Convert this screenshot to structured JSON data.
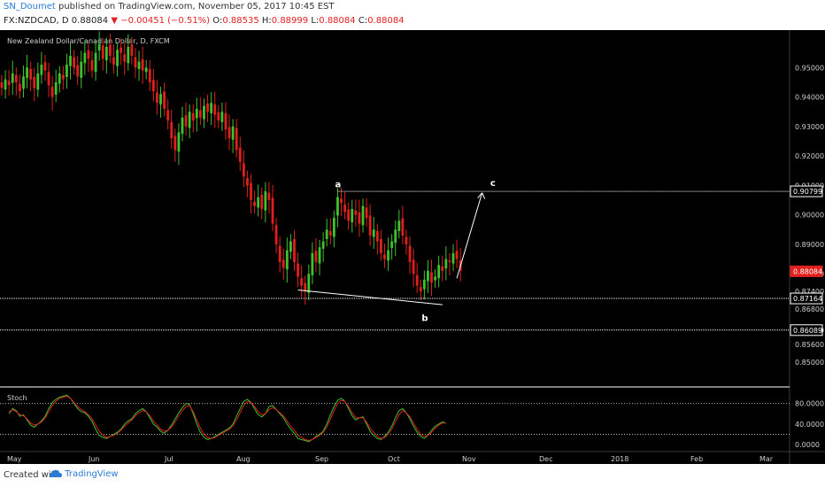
{
  "header": {
    "author": "SN_Doumet",
    "published_text": "published on TradingView.com, November 05, 2017 10:45 EST",
    "symbol": "FX:NZDCAD, D",
    "last": "0.88084",
    "change": "−0.00451 (−0.51%)",
    "o_label": "O:",
    "o_value": "0.88535",
    "h_label": "H:",
    "h_value": "0.88999",
    "l_label": "L:",
    "l_value": "0.88084",
    "c_label": "C:",
    "c_value": "0.88084"
  },
  "footer": {
    "created_with": "Created with",
    "brand": "TradingView"
  },
  "colors": {
    "bg": "#000000",
    "up": "#3ec22e",
    "down": "#e0201d",
    "stoch_k": "#3ec22e",
    "stoch_d": "#e0201d",
    "annotation": "#ffffff",
    "price_tag_last": "#e0201d"
  },
  "chart_data": [
    {
      "type": "candlestick",
      "title": "New Zealand Dollar/Canadian Dollar, D, FXCM",
      "ylim": [
        0.8425,
        0.9585
      ],
      "y_ticks": [
        "0.95000",
        "0.94000",
        "0.93000",
        "0.92000",
        "0.91000",
        "0.90000",
        "0.89000",
        "0.88000",
        "0.87400",
        "0.86800",
        "0.86089",
        "0.85600",
        "0.85000"
      ],
      "x_ticks": [
        "May",
        "Jun",
        "Jul",
        "Aug",
        "Sep",
        "Oct",
        "Nov",
        "Dec",
        "2018",
        "Feb",
        "Mar"
      ],
      "price_tags": [
        {
          "label": "0.90799",
          "value": 0.90799,
          "style": "white"
        },
        {
          "label": "0.88084",
          "value": 0.88084,
          "style": "red"
        },
        {
          "label": "0.87164",
          "value": 0.87164,
          "style": "white"
        },
        {
          "label": "0.86089",
          "value": 0.86089,
          "style": "white"
        }
      ],
      "horizontal_lines": [
        0.90799,
        0.87164,
        0.86089
      ],
      "close_series": [
        0.943,
        0.946,
        0.944,
        0.948,
        0.945,
        0.942,
        0.947,
        0.95,
        0.946,
        0.943,
        0.948,
        0.951,
        0.949,
        0.944,
        0.94,
        0.945,
        0.948,
        0.946,
        0.951,
        0.954,
        0.95,
        0.947,
        0.952,
        0.955,
        0.953,
        0.949,
        0.955,
        0.958,
        0.953,
        0.957,
        0.954,
        0.951,
        0.956,
        0.955,
        0.952,
        0.957,
        0.954,
        0.95,
        0.952,
        0.949,
        0.95,
        0.945,
        0.942,
        0.938,
        0.941,
        0.936,
        0.932,
        0.926,
        0.922,
        0.928,
        0.933,
        0.93,
        0.935,
        0.932,
        0.936,
        0.933,
        0.937,
        0.935,
        0.938,
        0.934,
        0.932,
        0.935,
        0.929,
        0.926,
        0.93,
        0.922,
        0.918,
        0.913,
        0.91,
        0.905,
        0.903,
        0.906,
        0.902,
        0.908,
        0.905,
        0.897,
        0.89,
        0.884,
        0.882,
        0.888,
        0.891,
        0.884,
        0.879,
        0.876,
        0.874,
        0.88,
        0.887,
        0.884,
        0.889,
        0.891,
        0.895,
        0.893,
        0.899,
        0.906,
        0.904,
        0.901,
        0.898,
        0.902,
        0.9,
        0.897,
        0.903,
        0.899,
        0.893,
        0.895,
        0.891,
        0.887,
        0.885,
        0.888,
        0.891,
        0.895,
        0.898,
        0.893,
        0.89,
        0.884,
        0.88,
        0.876,
        0.874,
        0.878,
        0.881,
        0.877,
        0.879,
        0.883,
        0.881,
        0.885,
        0.884,
        0.887,
        0.885,
        0.881
      ],
      "annotations": [
        {
          "label": "a",
          "date_index": 93,
          "price": 0.9075
        },
        {
          "label": "b",
          "date_index": 117,
          "price": 0.87
        },
        {
          "label": "c",
          "date_index": 136,
          "price": 0.908
        }
      ],
      "trendlines": [
        {
          "from": [
            82,
            0.8745
          ],
          "to": [
            122,
            0.8695
          ]
        },
        {
          "from": [
            126,
            0.8785
          ],
          "to": [
            133,
            0.9075
          ]
        }
      ],
      "grid": false
    },
    {
      "type": "line",
      "title": "Stoch",
      "ylim": [
        -10,
        100
      ],
      "y_ticks": [
        "80.0000",
        "40.0000",
        "0.0000"
      ],
      "levels": [
        80,
        20
      ],
      "series": [
        {
          "name": "",
          "values": [
            60,
            70,
            66,
            55,
            58,
            48,
            38,
            34,
            40,
            46,
            55,
            70,
            82,
            88,
            92,
            94,
            96,
            90,
            80,
            70,
            64,
            62,
            55,
            45,
            30,
            18,
            14,
            12,
            16,
            20,
            24,
            30,
            40,
            46,
            50,
            60,
            66,
            70,
            64,
            52,
            40,
            34,
            26,
            22,
            28,
            38,
            50,
            62,
            72,
            80,
            78,
            60,
            40,
            24,
            14,
            10,
            12,
            16,
            20,
            24,
            28,
            32,
            40,
            55,
            70,
            84,
            88,
            82,
            70,
            58,
            54,
            60,
            74,
            76,
            68,
            60,
            52,
            40,
            30,
            22,
            12,
            10,
            8,
            6,
            10,
            16,
            20,
            26,
            40,
            58,
            74,
            86,
            90,
            84,
            70,
            56,
            48,
            52,
            54,
            40,
            26,
            18,
            12,
            10,
            16,
            24,
            36,
            52,
            66,
            70,
            62,
            50,
            36,
            24,
            16,
            12,
            18,
            28,
            36,
            40,
            44,
            42
          ]
        },
        {
          "name": "",
          "values": [
            64,
            68,
            64,
            58,
            56,
            50,
            42,
            38,
            40,
            44,
            52,
            64,
            76,
            84,
            90,
            92,
            94,
            90,
            82,
            74,
            68,
            64,
            58,
            50,
            38,
            26,
            18,
            14,
            16,
            18,
            22,
            28,
            36,
            42,
            48,
            56,
            62,
            66,
            64,
            56,
            46,
            38,
            30,
            26,
            28,
            34,
            44,
            56,
            66,
            74,
            76,
            64,
            48,
            32,
            20,
            14,
            12,
            14,
            18,
            22,
            26,
            30,
            36,
            48,
            62,
            76,
            84,
            82,
            74,
            64,
            58,
            60,
            68,
            72,
            68,
            62,
            56,
            46,
            36,
            28,
            18,
            14,
            10,
            8,
            10,
            14,
            18,
            24,
            34,
            50,
            66,
            80,
            86,
            84,
            74,
            62,
            52,
            52,
            52,
            44,
            32,
            24,
            16,
            12,
            14,
            20,
            30,
            44,
            58,
            66,
            62,
            54,
            42,
            30,
            20,
            16,
            18,
            24,
            32,
            38,
            42,
            42
          ]
        }
      ]
    }
  ]
}
